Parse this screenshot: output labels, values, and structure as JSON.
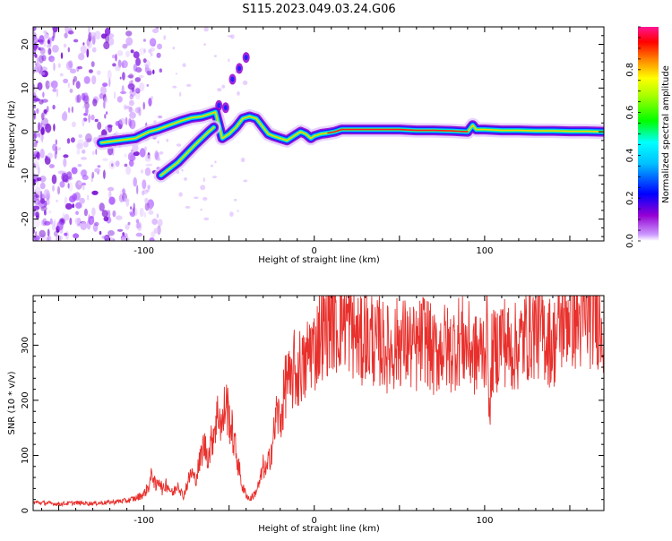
{
  "title": "S115.2023.049.03.24.G06",
  "chart_data": [
    {
      "type": "heatmap",
      "xlabel": "Height of straight line (km)",
      "ylabel": "Frequency (Hz)",
      "xlim": [
        -165,
        170
      ],
      "ylim": [
        -25,
        24
      ],
      "x_ticks": [
        -100,
        0,
        100
      ],
      "y_ticks": [
        -20,
        -10,
        0,
        10,
        20
      ],
      "colorbar": {
        "label": "Normalized spectral amplitude",
        "range": [
          0,
          1
        ],
        "ticks": [
          0.0,
          0.2,
          0.4,
          0.6,
          0.8
        ],
        "colors": [
          "#ffffff",
          "#9400d3",
          "#0000ff",
          "#00ffff",
          "#00ff00",
          "#ffff00",
          "#ff8000",
          "#ff0000",
          "#ff1493"
        ]
      },
      "ridge": {
        "x": [
          -125,
          -115,
          -105,
          -97,
          -92,
          -85,
          -78,
          -72,
          -66,
          -62,
          -58,
          -54,
          -50,
          -46,
          -42,
          -38,
          -34,
          -30,
          -27,
          -24,
          -20,
          -16,
          -12,
          -8,
          -5,
          -2,
          0,
          4,
          8,
          12,
          16,
          20,
          30,
          40,
          50,
          60,
          70,
          80,
          90,
          93,
          95,
          100,
          110,
          120,
          130,
          140,
          150,
          160,
          170
        ],
        "y": [
          -2.5,
          -2,
          -1.5,
          0,
          0.5,
          1.5,
          2.5,
          3.2,
          3.5,
          4,
          4.5,
          -1.5,
          -0.5,
          1,
          3,
          3.5,
          3,
          1,
          -0.5,
          -1,
          -1.5,
          -2,
          -1,
          0,
          -0.5,
          -1.5,
          -1,
          -0.5,
          -0.3,
          0,
          0.5,
          0.5,
          0.5,
          0.5,
          0.5,
          0.3,
          0.3,
          0.2,
          0,
          1.5,
          0.5,
          0.5,
          0.3,
          0.3,
          0.2,
          0.2,
          0.1,
          0.1,
          0
        ]
      },
      "branch": {
        "x": [
          -90,
          -85,
          -80,
          -75,
          -70,
          -66,
          -62,
          -59
        ],
        "y": [
          -10,
          -8.5,
          -7,
          -5,
          -3,
          -1.5,
          0,
          1
        ]
      }
    },
    {
      "type": "line",
      "xlabel": "Height of straight line (km)",
      "ylabel": "SNR (10 * v/v)",
      "xlim": [
        -165,
        170
      ],
      "ylim": [
        0,
        390
      ],
      "x_ticks": [
        -100,
        0,
        100
      ],
      "y_ticks": [
        0,
        100,
        200,
        300
      ],
      "color": "#e8302c",
      "series": [
        {
          "x": [
            -165,
            -150,
            -140,
            -130,
            -120,
            -110,
            -105,
            -100,
            -97,
            -95,
            -93,
            -91,
            -89,
            -87,
            -85,
            -83,
            -80,
            -77,
            -75,
            -72,
            -70,
            -67,
            -65,
            -62,
            -60,
            -58,
            -56,
            -54,
            -52,
            -50,
            -48,
            -45,
            -42,
            -40,
            -38,
            -35,
            -32,
            -30,
            -28,
            -26,
            -24,
            -22,
            -20,
            -18,
            -16,
            -14,
            -12,
            -10,
            -8,
            -6,
            -4,
            -2,
            0,
            2,
            4,
            6,
            8,
            10,
            12,
            14,
            16,
            18,
            20,
            22,
            24,
            26,
            28,
            30,
            32,
            34,
            36,
            38,
            40,
            45,
            50,
            55,
            60,
            65,
            70,
            75,
            80,
            85,
            90,
            95,
            100,
            102,
            103,
            104,
            106,
            108,
            110,
            115,
            120,
            125,
            130,
            135,
            140,
            145,
            150,
            155,
            160,
            165,
            170
          ],
          "y": [
            15,
            12,
            14,
            13,
            15,
            18,
            22,
            30,
            45,
            70,
            40,
            60,
            35,
            50,
            40,
            30,
            50,
            25,
            45,
            70,
            55,
            90,
            120,
            100,
            130,
            160,
            180,
            150,
            200,
            170,
            140,
            90,
            40,
            30,
            20,
            30,
            50,
            80,
            70,
            100,
            130,
            180,
            160,
            200,
            250,
            220,
            260,
            240,
            270,
            250,
            280,
            300,
            290,
            310,
            330,
            320,
            340,
            350,
            340,
            330,
            360,
            350,
            340,
            330,
            320,
            310,
            300,
            330,
            300,
            320,
            290,
            310,
            300,
            290,
            310,
            300,
            290,
            320,
            280,
            300,
            290,
            310,
            300,
            280,
            300,
            320,
            140,
            280,
            290,
            300,
            320,
            290,
            300,
            320,
            330,
            320,
            300,
            340,
            360,
            340,
            350,
            360,
            340
          ]
        }
      ]
    }
  ]
}
